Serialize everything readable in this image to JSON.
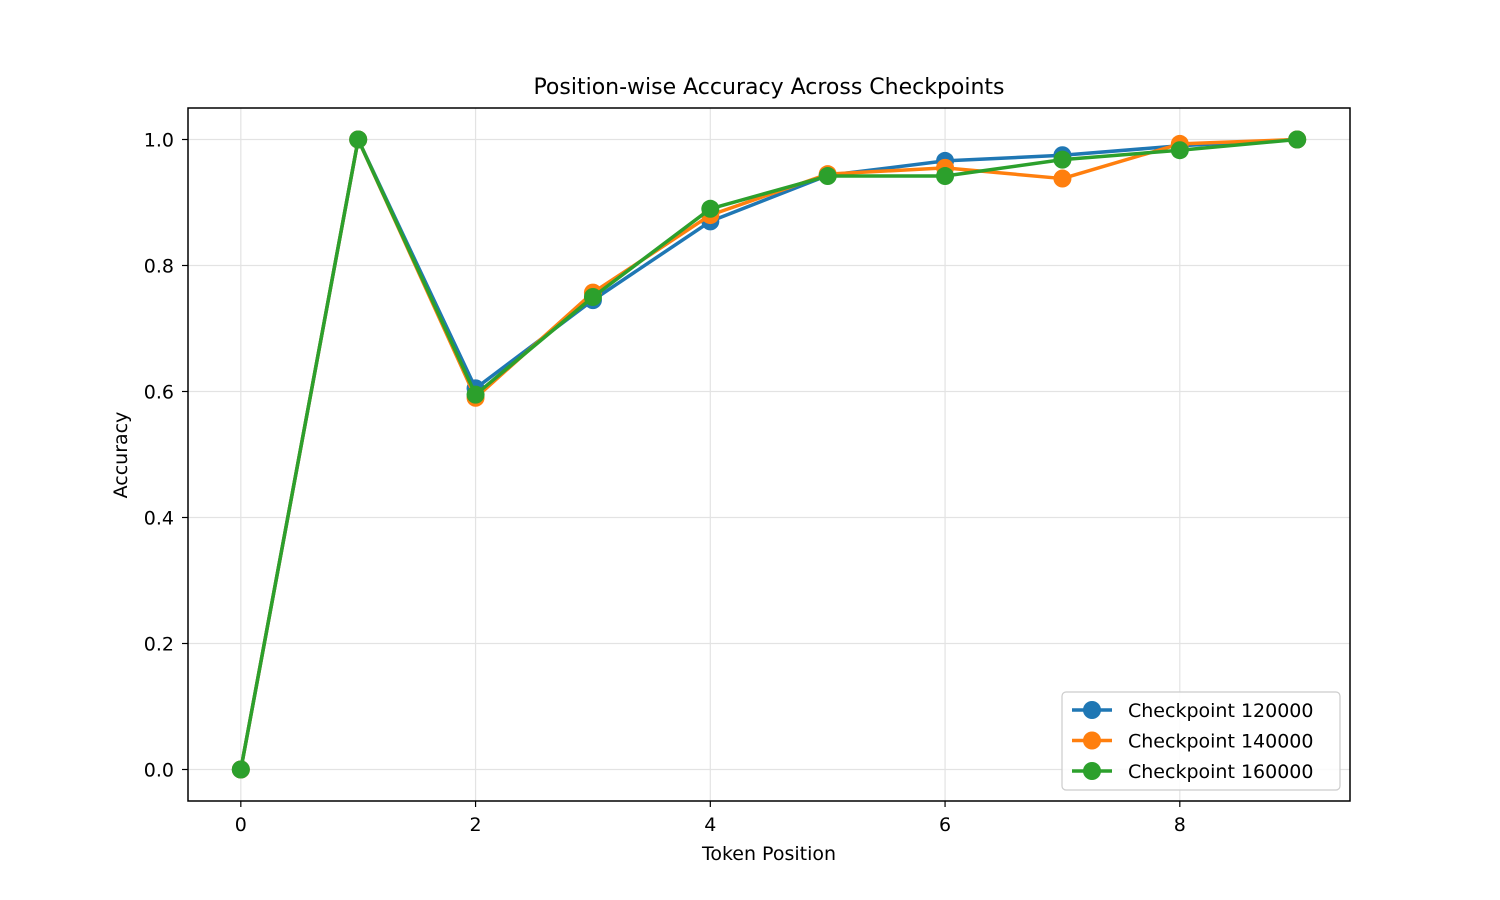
{
  "chart_data": {
    "type": "line",
    "title": "Position-wise Accuracy Across Checkpoints",
    "xlabel": "Token Position",
    "ylabel": "Accuracy",
    "xlim": [
      -0.45,
      9.45
    ],
    "ylim": [
      -0.05,
      1.05
    ],
    "x_ticks": [
      0,
      2,
      4,
      6,
      8
    ],
    "y_ticks": [
      0.0,
      0.2,
      0.4,
      0.6,
      0.8,
      1.0
    ],
    "x_tick_labels": [
      "0",
      "2",
      "4",
      "6",
      "8"
    ],
    "y_tick_labels": [
      "0.0",
      "0.2",
      "0.4",
      "0.6",
      "0.8",
      "1.0"
    ],
    "grid": true,
    "legend_position": "lower-right",
    "x": [
      0,
      1,
      2,
      3,
      4,
      5,
      6,
      7,
      8,
      9
    ],
    "series": [
      {
        "name": "Checkpoint 120000",
        "color": "#1f77b4",
        "values": [
          0.0,
          1.0,
          0.605,
          0.745,
          0.87,
          0.943,
          0.966,
          0.975,
          0.99,
          1.0
        ]
      },
      {
        "name": "Checkpoint 140000",
        "color": "#ff7f0e",
        "values": [
          0.0,
          1.0,
          0.59,
          0.757,
          0.88,
          0.945,
          0.955,
          0.938,
          0.993,
          1.0
        ]
      },
      {
        "name": "Checkpoint 160000",
        "color": "#2ca02c",
        "values": [
          0.0,
          1.0,
          0.595,
          0.75,
          0.89,
          0.942,
          0.942,
          0.968,
          0.983,
          1.0
        ]
      }
    ]
  }
}
